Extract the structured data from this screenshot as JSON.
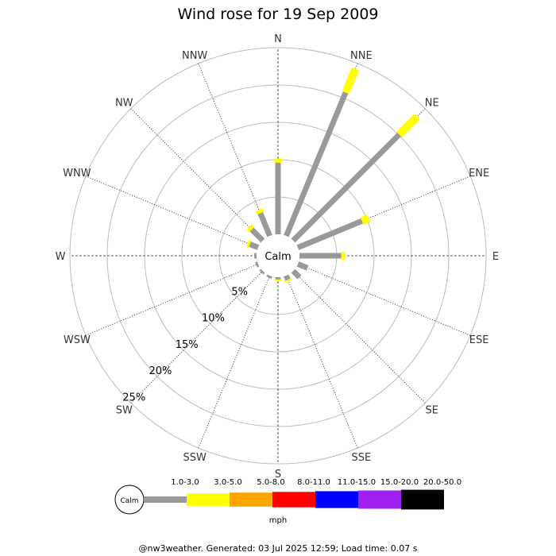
{
  "chart_data": {
    "type": "windrose",
    "title": "Wind rose for 19 Sep 2009",
    "directions": [
      "N",
      "NNE",
      "NE",
      "ENE",
      "E",
      "ESE",
      "SE",
      "SSE",
      "S",
      "SSW",
      "SW",
      "WSW",
      "W",
      "WNW",
      "NW",
      "NNW"
    ],
    "rings_percent": [
      5,
      10,
      15,
      20,
      25
    ],
    "ring_labels": [
      "5%",
      "10%",
      "15%",
      "20%",
      "25%"
    ],
    "calm_label": "Calm",
    "unit": "mph",
    "speed_bins": [
      {
        "label": "1.0-3.0",
        "color": "#999999"
      },
      {
        "label": "3.0-5.0",
        "color": "#ffff00"
      },
      {
        "label": "5.0-8.0",
        "color": "#ffa500"
      },
      {
        "label": "8.0-11.0",
        "color": "#ff0000"
      },
      {
        "label": "11.0-15.0",
        "color": "#0000ff"
      },
      {
        "label": "15.0-20.0",
        "color": "#a020f0"
      },
      {
        "label": "20.0-50.0",
        "color": "#000000"
      }
    ],
    "series": [
      {
        "name": "1.0-3.0",
        "values": [
          9.6,
          20.8,
          20.1,
          9.3,
          5.6,
          1.4,
          1.2,
          0.6,
          0.3,
          0.3,
          0.3,
          0.3,
          0.3,
          1.2,
          2.1,
          3.3
        ]
      },
      {
        "name": "3.0-5.0",
        "values": [
          0.5,
          3.4,
          3.4,
          1.0,
          0.5,
          0.0,
          0.0,
          0.2,
          0.2,
          0.0,
          0.0,
          0.0,
          0.0,
          0.3,
          0.5,
          0.5
        ]
      }
    ]
  },
  "footer": "@nw3weather. Generated: 03 Jul 2025 12:59; Load time: 0.07 s"
}
